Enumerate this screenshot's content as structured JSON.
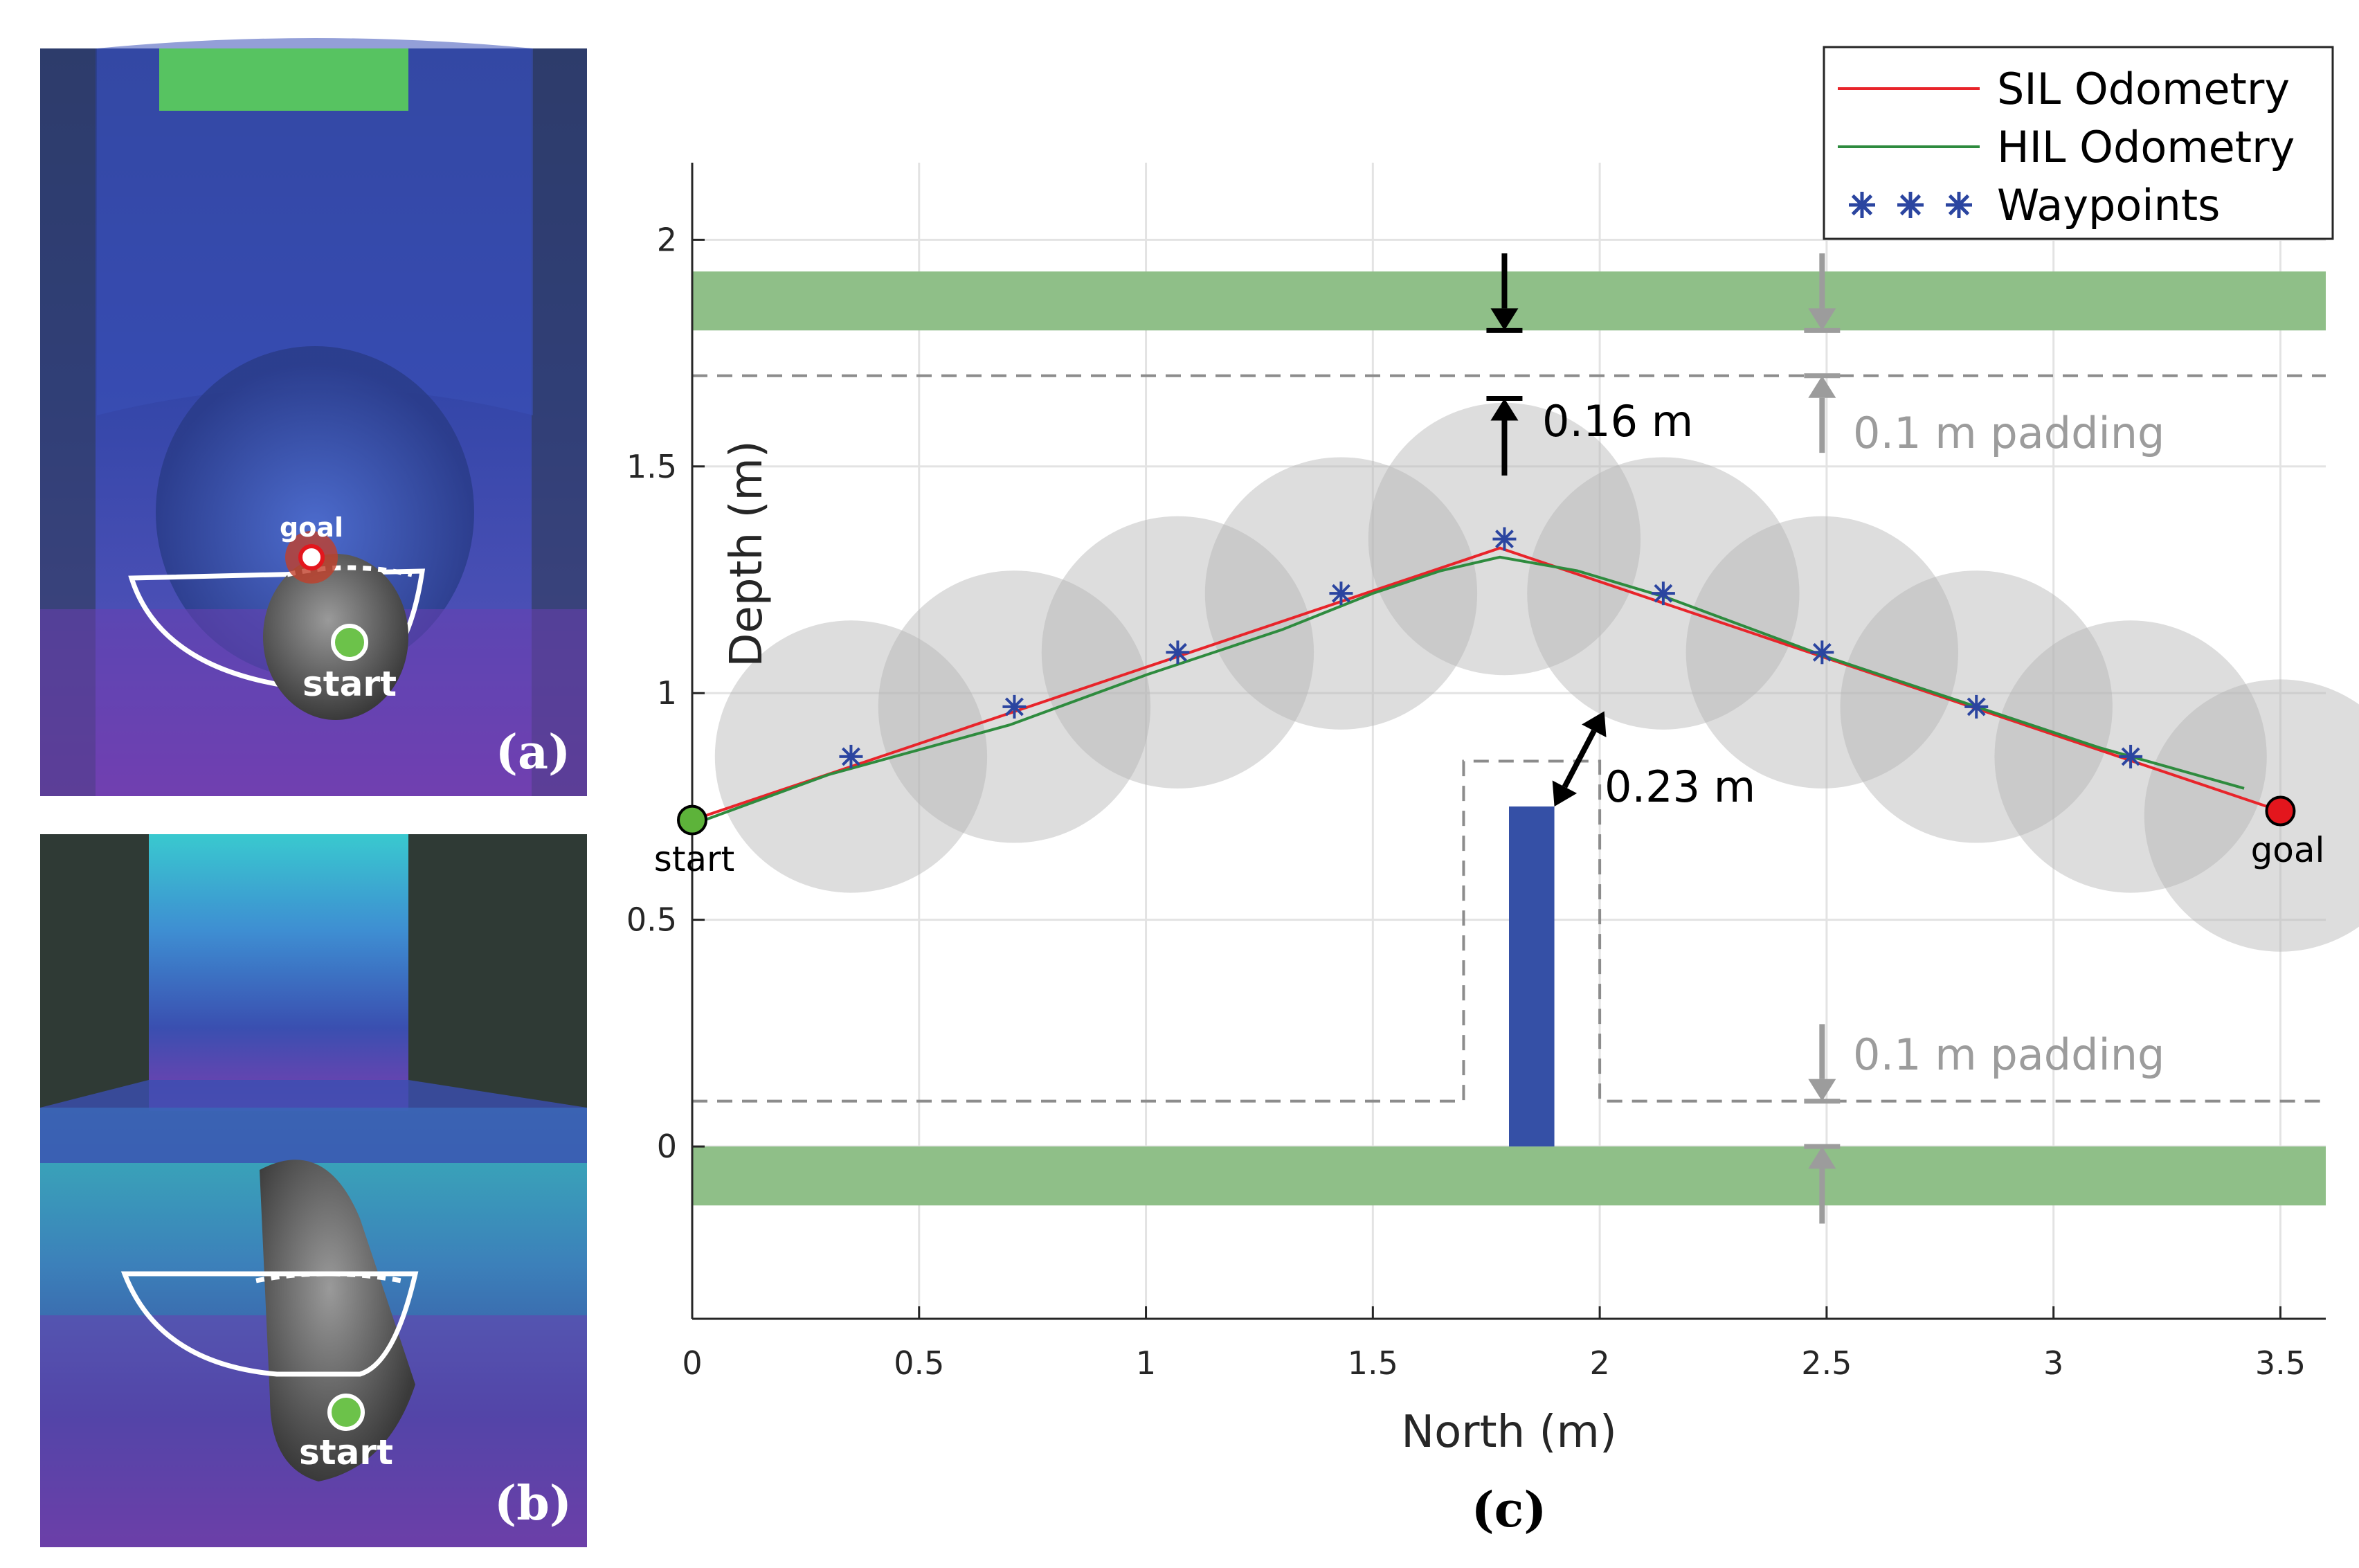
{
  "panels": {
    "a": {
      "label": "(a)",
      "start_label": "start",
      "goal_label": "goal"
    },
    "b": {
      "label": "(b)",
      "start_label": "start"
    },
    "c": {
      "label": "(c)"
    }
  },
  "chart_data": {
    "type": "line",
    "title": "",
    "xlabel": "North (m)",
    "ylabel": "Depth (m)",
    "xlim": [
      0,
      3.6
    ],
    "ylim": [
      -0.38,
      2.17
    ],
    "xticks": [
      0,
      0.5,
      1,
      1.5,
      2,
      2.5,
      3,
      3.5
    ],
    "yticks": [
      0,
      0.5,
      1,
      1.5,
      2
    ],
    "xtick_labels": [
      "0",
      "0.5",
      "1",
      "1.5",
      "2",
      "2.5",
      "3",
      "3.5"
    ],
    "ytick_labels": [
      "0",
      "0.5",
      "1",
      "1.5",
      "2"
    ],
    "grid": true,
    "legend_position": "top-right",
    "series": [
      {
        "name": "SIL Odometry",
        "color": "#e8242a",
        "style": "line",
        "x": [
          0,
          1.78,
          3.5
        ],
        "y": [
          0.72,
          1.32,
          0.74
        ]
      },
      {
        "name": "HIL Odometry",
        "color": "#2e8b3e",
        "style": "line",
        "x": [
          0,
          0.3,
          0.7,
          1.0,
          1.3,
          1.5,
          1.65,
          1.78,
          1.95,
          2.15,
          2.5,
          2.8,
          3.1,
          3.42
        ],
        "y": [
          0.71,
          0.82,
          0.93,
          1.04,
          1.14,
          1.22,
          1.27,
          1.3,
          1.27,
          1.21,
          1.08,
          0.98,
          0.88,
          0.79
        ]
      },
      {
        "name": "Waypoints",
        "color": "#2b45a0",
        "style": "marker",
        "x": [
          0.35,
          0.71,
          1.07,
          1.43,
          1.79,
          2.14,
          2.49,
          2.83,
          3.17
        ],
        "y": [
          0.86,
          0.97,
          1.09,
          1.22,
          1.34,
          1.22,
          1.09,
          0.97,
          0.86
        ]
      }
    ],
    "clearance_circles": {
      "radius": 0.3,
      "color": "#b3b3b3",
      "x": [
        0.35,
        0.71,
        1.07,
        1.43,
        1.79,
        2.14,
        2.49,
        2.83,
        3.17,
        3.5
      ],
      "y": [
        0.86,
        0.97,
        1.09,
        1.22,
        1.34,
        1.22,
        1.09,
        0.97,
        0.86,
        0.73
      ]
    },
    "walls": [
      {
        "x0": 0,
        "x1": 3.6,
        "y0": 1.8,
        "y1": 1.93,
        "color": "#8fbf88"
      },
      {
        "x0": 0,
        "x1": 3.6,
        "y0": -0.13,
        "y1": 0,
        "color": "#8fbf88"
      }
    ],
    "obstacle": {
      "x0": 1.8,
      "x1": 1.9,
      "y0": 0,
      "y1": 0.75,
      "color": "#3550a6"
    },
    "padding_lines": {
      "top_y": 1.7,
      "bottom_y": 0.1,
      "obstacle_box": {
        "x0": 1.7,
        "x1": 2.0,
        "y_top": 0.85
      }
    },
    "start_point": {
      "x": 0,
      "y": 0.72,
      "label": "start",
      "color": "#5db33a"
    },
    "goal_point": {
      "x": 3.5,
      "y": 0.74,
      "label": "goal",
      "color": "#e3161d"
    },
    "annotations": {
      "top_clearance": "0.16 m",
      "obstacle_clearance": "0.23 m",
      "top_padding": "0.1 m padding",
      "bottom_padding": "0.1 m padding"
    }
  }
}
